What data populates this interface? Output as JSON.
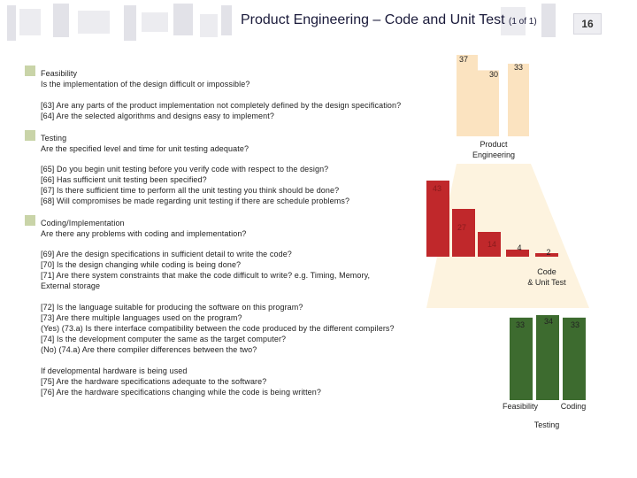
{
  "slide": {
    "title": "Product Engineering – Code and Unit Test",
    "title_sub": "(1 of 1)",
    "page_number": "16"
  },
  "sections": [
    {
      "heading": "Feasibility",
      "question": "Is the implementation of the design difficult or impossible?",
      "items": [
        "[63] Are any parts of the product implementation not completely defined by the design specification?",
        "[64] Are the selected algorithms and designs easy to implement?"
      ]
    },
    {
      "heading": "Testing",
      "question": "Are the specified level and time for unit testing adequate?",
      "items": [
        "[65] Do you begin unit testing before you verify code with respect to the design?",
        "[66] Has sufficient unit testing been specified?",
        "[67] Is there sufficient time to perform all the unit testing you think should be done?",
        "[68] Will compromises be made regarding unit testing if there are schedule problems?"
      ]
    },
    {
      "heading": "Coding/Implementation",
      "question": "Are there any problems with coding and implementation?",
      "items": [
        "[69] Are the design specifications in sufficient detail to write the code?",
        "[70] Is the design changing while coding is being done?",
        "[71] Are there system constraints that make the code difficult to write? e.g. Timing, Memory,",
        "External storage"
      ],
      "items2": [
        "[72] Is the language suitable for producing the software on this program?",
        "[73] Are there multiple languages used on the program?",
        "(Yes) (73.a) Is there interface compatibility between the code produced by the different compilers?",
        "[74] Is the development computer the same as the target computer?",
        "(No) (74.a) Are there compiler differences between the two?"
      ]
    },
    {
      "heading": "If developmental hardware is being used",
      "items": [
        "[75] Are the hardware specifications adequate to the software?",
        "[76] Are the hardware specifications changing while the code is being written?"
      ]
    }
  ],
  "colors": {
    "bullet": "#c9d4a8",
    "top_bars": "#fbe3c0",
    "mid_bars": "#c0282b",
    "bottom_bars": "#3d6b2f",
    "funnel": "#fdf3df"
  },
  "chart_data": [
    {
      "type": "bar",
      "title": "Product Engineering",
      "categories": [
        "",
        "",
        ""
      ],
      "values": [
        37,
        30,
        33
      ],
      "ylim": [
        0,
        37
      ]
    },
    {
      "type": "bar",
      "title": "Code & Unit Test",
      "categories": [
        "",
        "",
        "",
        "",
        ""
      ],
      "values": [
        43,
        27,
        14,
        4,
        2
      ],
      "ylim": [
        0,
        43
      ]
    },
    {
      "type": "bar",
      "title": "",
      "categories": [
        "Feasibility",
        "Testing",
        "Coding"
      ],
      "values": [
        33,
        34,
        33
      ],
      "ylim": [
        0,
        34
      ]
    }
  ]
}
